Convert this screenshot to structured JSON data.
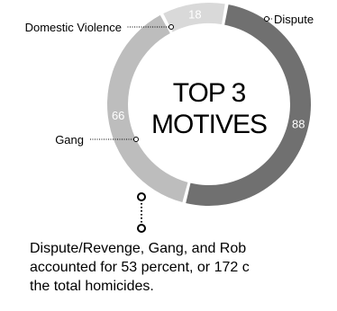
{
  "chart_data": {
    "type": "pie",
    "title": "TOP 3 MOTIVES",
    "title_lines": [
      "TOP 3",
      "MOTIVES"
    ],
    "donut": true,
    "slices": [
      {
        "name": "Dispute",
        "value": 88,
        "color": "#707070"
      },
      {
        "name": "Gang",
        "value": 66,
        "color": "#bdbdbd"
      },
      {
        "name": "Domestic Violence",
        "value": 18,
        "color": "#d9d9d9"
      }
    ]
  },
  "caption": {
    "lines": [
      "Dispute/Revenge, Gang, and Rob",
      "accounted for 53 percent, or 172 c",
      "the total homicides."
    ]
  }
}
